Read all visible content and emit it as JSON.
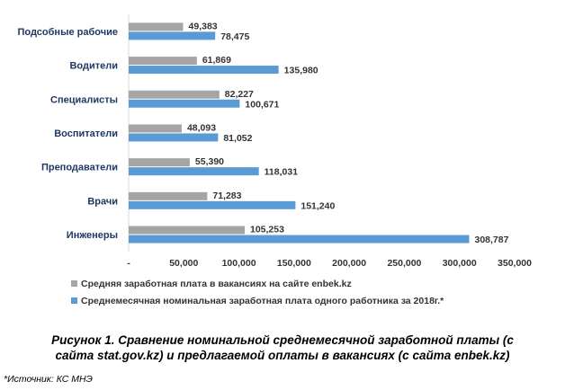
{
  "chart_data": {
    "type": "bar",
    "orientation": "horizontal",
    "categories": [
      "Подсобные рабочие",
      "Водители",
      "Специалисты",
      "Воспитатели",
      "Преподаватели",
      "Врачи",
      "Инженеры"
    ],
    "series": [
      {
        "name": "Средняя заработная плата в вакансиях на сайте enbek.kz",
        "color": "#a5a5a5",
        "values": [
          49383,
          61869,
          82227,
          48093,
          55390,
          71283,
          105253
        ],
        "labels": [
          "49,383",
          "61,869",
          "82,227",
          "48,093",
          "55,390",
          "71,283",
          "105,253"
        ]
      },
      {
        "name": "Среднемесячная номинальная заработная плата одного работника за 2018г.*",
        "color": "#5b9bd5",
        "values": [
          78475,
          135980,
          100671,
          81052,
          118031,
          151240,
          308787
        ],
        "labels": [
          "78,475",
          "135,980",
          "100,671",
          "81,052",
          "118,031",
          "151,240",
          "308,787"
        ]
      }
    ],
    "xlim": [
      0,
      350000
    ],
    "xticks": [
      0,
      50000,
      100000,
      150000,
      200000,
      250000,
      300000,
      350000
    ],
    "xtick_labels": [
      "-",
      "50,000",
      "100,000",
      "150,000",
      "200,000",
      "250,000",
      "300,000",
      "350,000"
    ],
    "legend_position": "bottom-left",
    "grid": false
  },
  "caption": {
    "line1": "Рисунок 1. Сравнение номинальной среднемесячной заработной платы (с",
    "line2": "сайта stat.gov.kz) и предлагаемой оплаты в вакансиях (с сайта enbek.kz)"
  },
  "source": "*Источник: КС МНЭ"
}
